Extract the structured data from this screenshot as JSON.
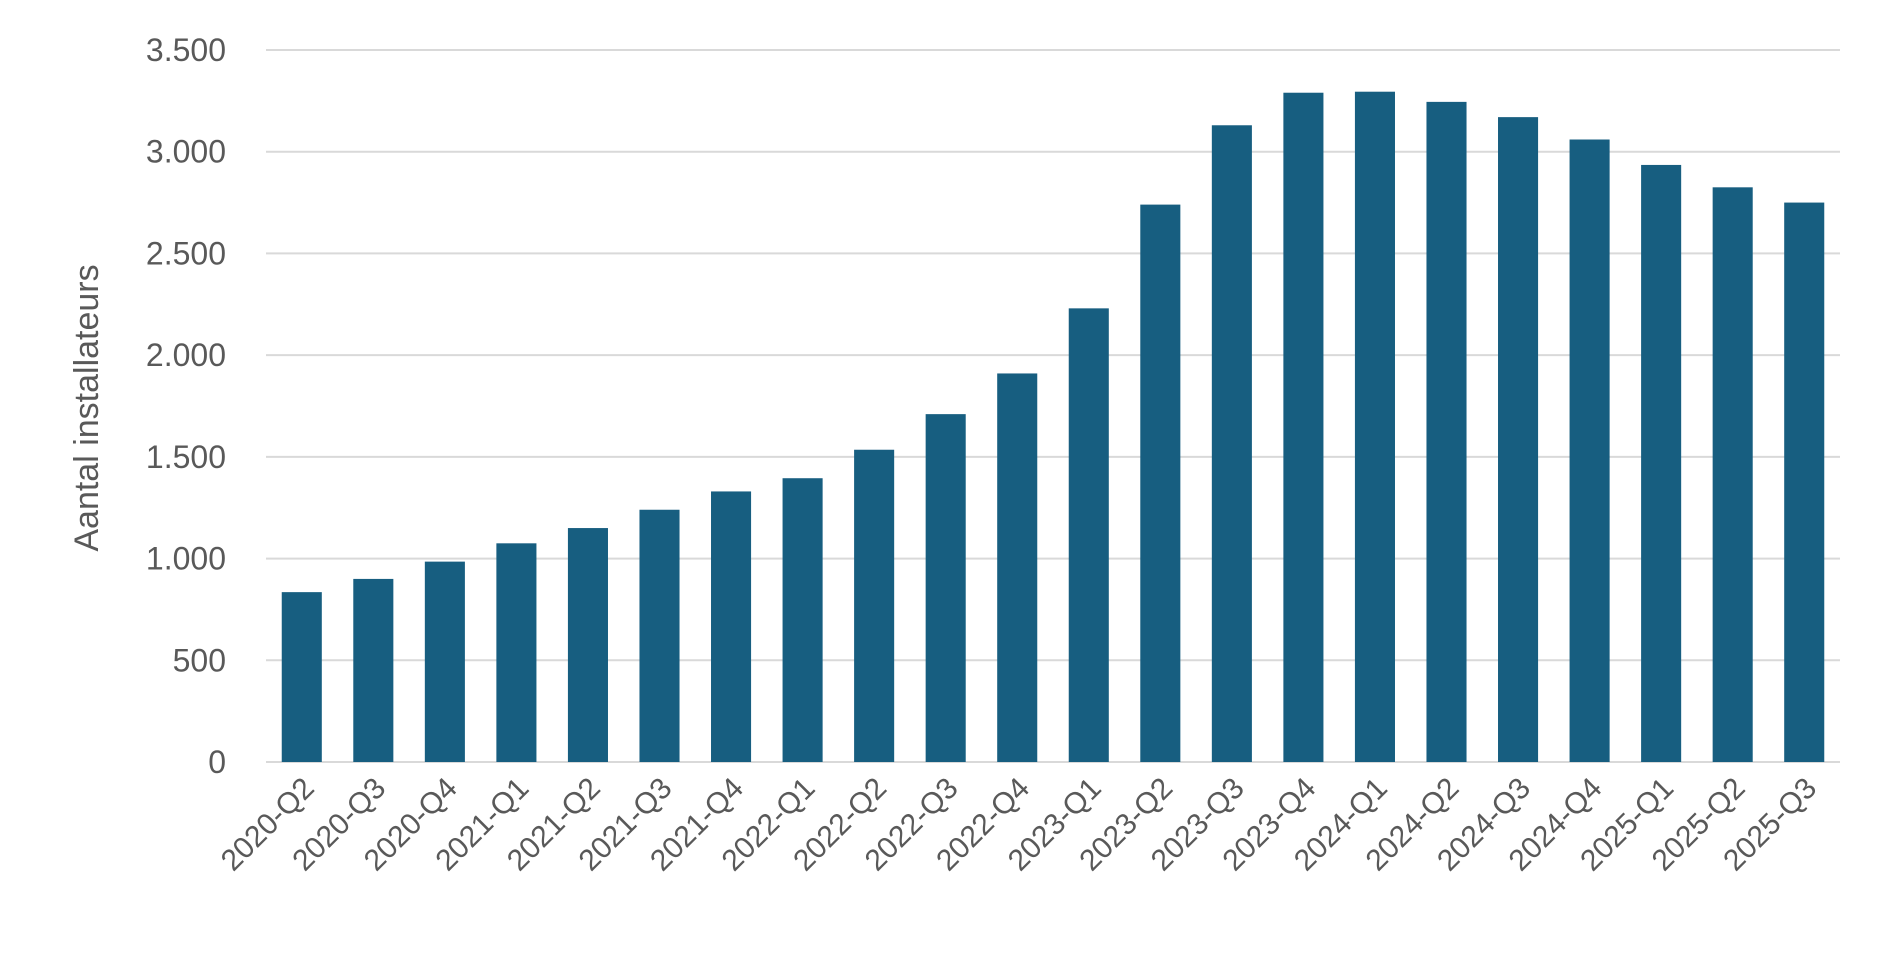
{
  "chart_data": {
    "type": "bar",
    "title": "",
    "xlabel": "",
    "ylabel": "Aantal installateurs",
    "categories": [
      "2020-Q2",
      "2020-Q3",
      "2020-Q4",
      "2021-Q1",
      "2021-Q2",
      "2021-Q3",
      "2021-Q4",
      "2022-Q1",
      "2022-Q2",
      "2022-Q3",
      "2022-Q4",
      "2023-Q1",
      "2023-Q2",
      "2023-Q3",
      "2023-Q4",
      "2024-Q1",
      "2024-Q2",
      "2024-Q3",
      "2024-Q4",
      "2025-Q1",
      "2025-Q2",
      "2025-Q3"
    ],
    "values": [
      835,
      900,
      985,
      1075,
      1150,
      1240,
      1330,
      1395,
      1535,
      1710,
      1910,
      2230,
      2740,
      3130,
      3290,
      3295,
      3245,
      3170,
      3060,
      2935,
      2825,
      2750
    ],
    "ylim": [
      0,
      3500
    ],
    "yticks": [
      0,
      500,
      1000,
      1500,
      2000,
      2500,
      3000,
      3500
    ],
    "ytick_labels": [
      "0",
      "500",
      "1.000",
      "1.500",
      "2.000",
      "2.500",
      "3.000",
      "3.500"
    ],
    "grid": true,
    "legend": "none",
    "bar_color": "#175e80",
    "grid_color": "#d9d9d9",
    "text_color": "#595959"
  }
}
